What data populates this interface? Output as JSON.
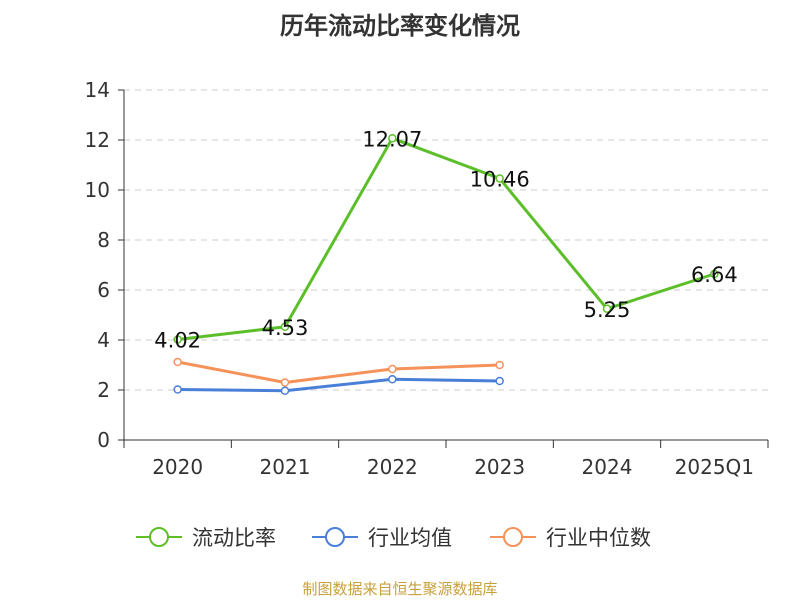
{
  "chart_data": {
    "type": "line",
    "title": "历年流动比率变化情况",
    "categories": [
      "2020",
      "2021",
      "2022",
      "2023",
      "2024",
      "2025Q1"
    ],
    "ylim": [
      0,
      14
    ],
    "yticks": [
      "0",
      "2",
      "4",
      "6",
      "8",
      "10",
      "12",
      "14"
    ],
    "grid": "horizontal-dashed",
    "legend_position": "bottom",
    "series": [
      {
        "name": "流动比率",
        "color": "#5cbf2a",
        "values": [
          4.02,
          4.53,
          12.07,
          10.46,
          5.25,
          6.64
        ],
        "labels": [
          "4.02",
          "4.53",
          "12.07",
          "10.46",
          "5.25",
          "6.64"
        ]
      },
      {
        "name": "行业均值",
        "color": "#4a7fd8",
        "values": [
          2.02,
          1.97,
          2.43,
          2.36,
          null,
          null
        ]
      },
      {
        "name": "行业中位数",
        "color": "#f5925a",
        "values": [
          3.12,
          2.3,
          2.84,
          3.0,
          null,
          null
        ]
      }
    ]
  },
  "source": "制图数据来自恒生聚源数据库"
}
